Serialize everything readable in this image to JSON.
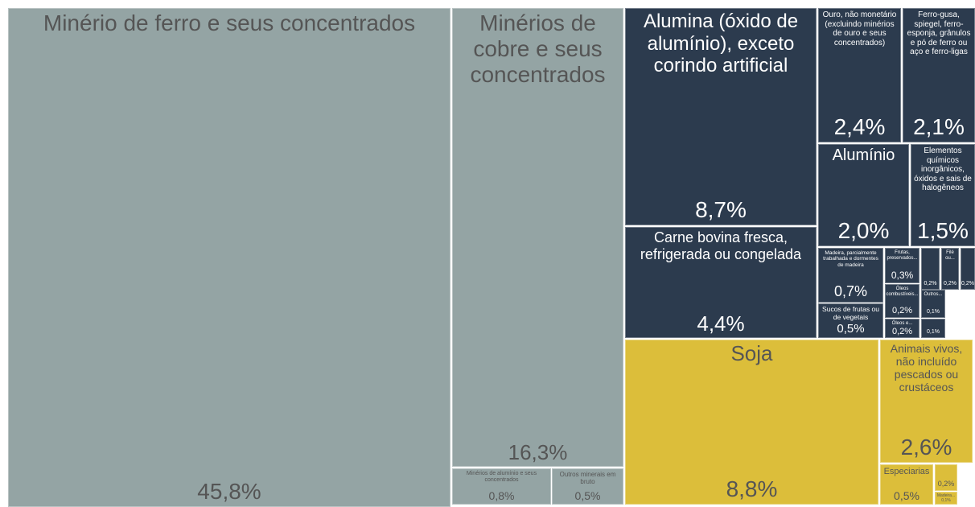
{
  "chart_data": {
    "type": "treemap",
    "series": [
      {
        "color": "#94a4a4",
        "text_color": "#555555",
        "categories": [
          "Minério de ferro e seus concentrados",
          "Minérios de cobre e seus concentrados",
          "Minérios de alumínio e seus concentrados",
          "Outros minerais em bruto"
        ],
        "values": [
          45.8,
          16.3,
          0.8,
          0.5
        ],
        "value_labels": [
          "45,8%",
          "16,3%",
          "0,8%",
          "0,5%"
        ]
      },
      {
        "color": "#2c3b4e",
        "text_color": "#ffffff",
        "categories": [
          "Alumina (óxido de alumínio), exceto corindo artificial",
          "Carne bovina fresca, refrigerada ou congelada",
          "Ouro, não monetário (excluindo minérios de ouro e seus concentrados)",
          "Ferro-gusa, spiegel, ferro-esponja, grânulos e pó de ferro ou aço e ferro-ligas",
          "Alumínio",
          "Elementos químicos inorgânicos, óxidos e sais de halogêneos",
          "Madeira, parcialmente trabalhada e dormentes de madeira",
          "Sucos de frutas ou de vegetais",
          "Frutas, preservados...",
          "Óleos combustíveis...",
          "Óleos e...",
          null,
          "Filé ou...",
          null,
          "Outros...",
          null
        ],
        "values": [
          8.7,
          4.4,
          2.4,
          2.1,
          2.0,
          1.5,
          0.7,
          0.5,
          0.3,
          0.2,
          0.2,
          0.2,
          0.2,
          0.2,
          0.1,
          0.1
        ],
        "value_labels": [
          "8,7%",
          "4,4%",
          "2,4%",
          "2,1%",
          "2,0%",
          "1,5%",
          "0,7%",
          "0,5%",
          "0,3%",
          "0,2%",
          "0,2%",
          "0,2%",
          "0,2%",
          "0,2%",
          "0,1%",
          "0,1%"
        ]
      },
      {
        "color": "#dcbe3a",
        "text_color": "#555555",
        "categories": [
          "Soja",
          "Animais vivos, não incluído pescados ou crustáceos",
          "Especiarias",
          null,
          "Madeira..."
        ],
        "values": [
          8.8,
          2.6,
          0.5,
          0.2,
          0.1
        ],
        "value_labels": [
          "8,8%",
          "2,6%",
          "0,5%",
          "0,2%",
          "0,1%"
        ]
      }
    ]
  }
}
